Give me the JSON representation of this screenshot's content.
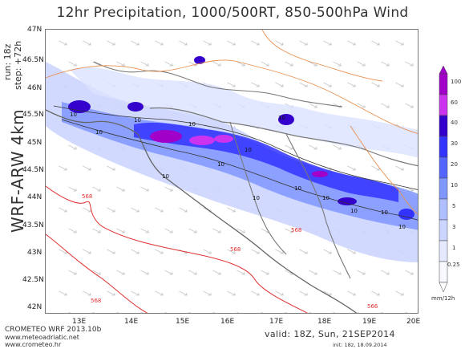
{
  "title": "12hr Precipitation, 1000/500RT, 850-500hPa Wind",
  "side_info": {
    "run": "run: 18z",
    "step": "step: +72h",
    "model": "WRF-ARW 4km"
  },
  "latitude_labels": [
    "47N",
    "46.5N",
    "46N",
    "45.5N",
    "45N",
    "44.5N",
    "44N",
    "43.5N",
    "43N",
    "42.5N",
    "42N"
  ],
  "longitude_labels": [
    "13E",
    "14E",
    "15E",
    "16E",
    "17E",
    "18E",
    "19E",
    "20E"
  ],
  "contour_labels": {
    "thickness": [
      "568",
      "568",
      "568",
      "568",
      "566"
    ],
    "precip": [
      "10",
      "10",
      "10",
      "10",
      "10",
      "10",
      "10",
      "10",
      "10",
      "10",
      "10",
      "10",
      "10",
      "10"
    ]
  },
  "legend": {
    "unit": "mm/12h",
    "levels": [
      "100",
      "60",
      "40",
      "30",
      "20",
      "10",
      "5",
      "3",
      "1",
      "0.25"
    ],
    "colors": [
      "#a000c8",
      "#cc33ee",
      "#3300cc",
      "#3333ff",
      "#5566ff",
      "#8096ff",
      "#aebeff",
      "#ccd5ff",
      "#e4e9ff",
      "#f8f9ff"
    ]
  },
  "footer": {
    "org": "CROMETEO WRF 2013.10b",
    "url1": "www.meteoadriatic.net",
    "url2": "www.crometeo.hr",
    "valid": "valid: 18Z, Sun, 21SEP2014",
    "init": "init: 18z, 18.09.2014"
  },
  "colors": {
    "precip_light": "#ccd5ff",
    "precip_mid": "#8096ff",
    "precip_heavy": "#3333ff",
    "precip_extreme": "#a000c8",
    "coast_line": "#666666",
    "thickness_line": "#e03030",
    "orange_contour": "#e89050",
    "wind_arrow": "#c0c0c0"
  }
}
